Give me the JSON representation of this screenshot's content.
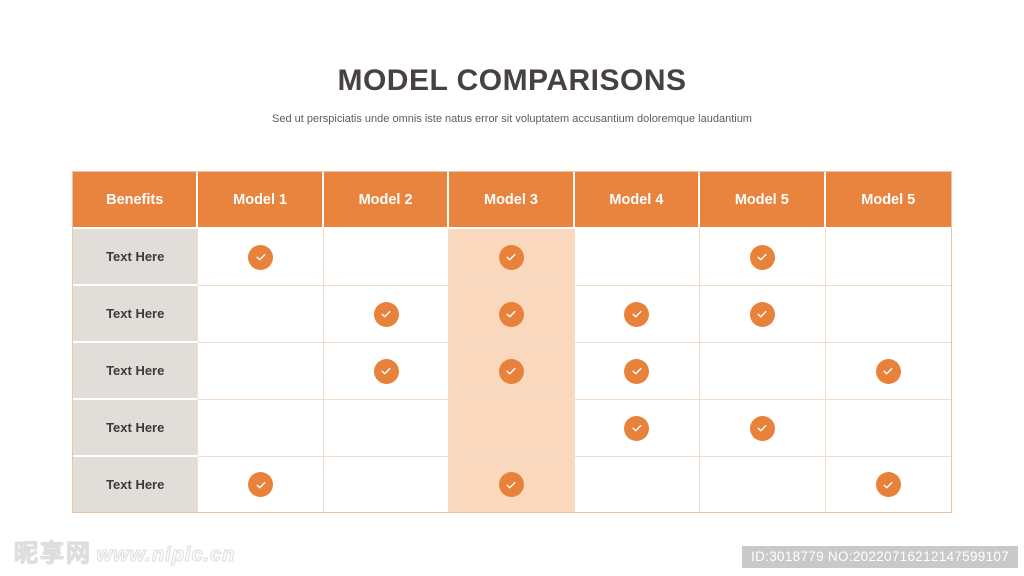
{
  "page": {
    "title": "MODEL COMPARISONS",
    "subtitle": "Sed ut perspiciatis unde omnis iste natus error sit voluptatem accusantium doloremque laudantium"
  },
  "table": {
    "columns": [
      "Benefits",
      "Model 1",
      "Model 2",
      "Model 3",
      "Model 4",
      "Model 5",
      "Model 5"
    ],
    "highlighted_column": "Model 3",
    "highlighted_column_index": 3,
    "check_icon": "check-circle-icon",
    "rows": [
      {
        "label": "Text Here",
        "checks": [
          true,
          false,
          true,
          false,
          true,
          false
        ]
      },
      {
        "label": "Text Here",
        "checks": [
          false,
          true,
          true,
          true,
          true,
          false
        ]
      },
      {
        "label": "Text Here",
        "checks": [
          false,
          true,
          true,
          true,
          false,
          true
        ]
      },
      {
        "label": "Text Here",
        "checks": [
          false,
          false,
          false,
          true,
          true,
          false
        ]
      },
      {
        "label": "Text Here",
        "checks": [
          true,
          false,
          true,
          false,
          false,
          true
        ]
      }
    ]
  },
  "watermark": {
    "site_name": "昵享网",
    "site_url": "www.nipic.cn",
    "id_label": "ID:3018779 NO:20220716212147599107"
  },
  "colors": {
    "accent": "#E8843E",
    "check_orange": "#E8823B",
    "highlight_peach": "#FAD8BD",
    "label_grey": "#E1DDD9",
    "grid": "#F3DCC6",
    "grid_outer": "#F0C49F",
    "title_text": "#474240",
    "subtitle_text": "#615C58",
    "badge_grey": "#C9C9C9"
  }
}
